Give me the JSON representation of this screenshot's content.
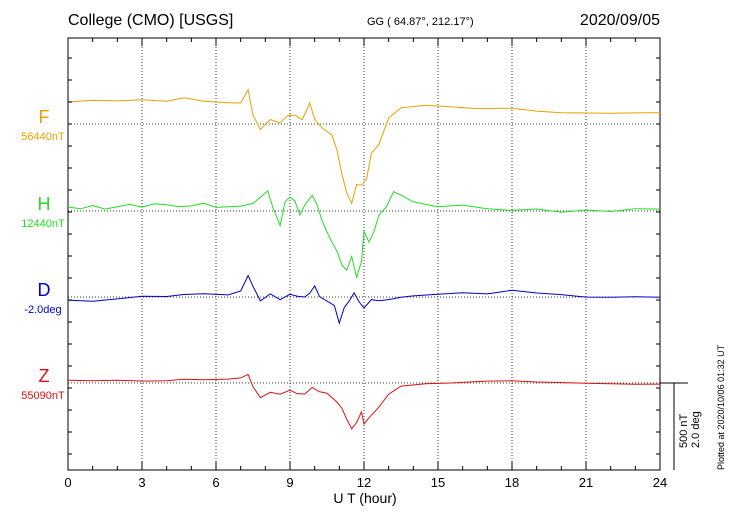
{
  "header": {
    "station": "College (CMO)  [USGS]",
    "coords": "GG ( 64.87°, 212.17°)",
    "date": "2020/09/05"
  },
  "footer": {
    "plotted": "Plotted at 2020/10/06 01:32 UT"
  },
  "scale": {
    "nt": "500 nT",
    "deg": "2.0 deg"
  },
  "chart_data": {
    "type": "line",
    "title": "College (CMO)  [USGS]",
    "xlabel": "U T (hour)",
    "ylabel": "",
    "xlim": [
      0,
      24
    ],
    "xticks": [
      0,
      3,
      6,
      9,
      12,
      15,
      18,
      21,
      24
    ],
    "xtick_labels": [
      "0",
      "3",
      "6",
      "9",
      "12",
      "15",
      "18",
      "21",
      "24"
    ],
    "grid": true,
    "series": [
      {
        "name": "F",
        "baseline_label": "56440nT",
        "color": "#e8a000",
        "points": [
          [
            0,
            -22
          ],
          [
            1,
            -23
          ],
          [
            2,
            -22
          ],
          [
            3,
            -23
          ],
          [
            4,
            -22
          ],
          [
            4.7,
            -25
          ],
          [
            5.5,
            -23
          ],
          [
            6.5,
            -22
          ],
          [
            7,
            -22
          ],
          [
            7.3,
            -35
          ],
          [
            7.5,
            -10
          ],
          [
            7.8,
            5
          ],
          [
            8.2,
            -5
          ],
          [
            8.6,
            0
          ],
          [
            8.9,
            -8
          ],
          [
            9.2,
            -10
          ],
          [
            9.5,
            -5
          ],
          [
            9.8,
            -20
          ],
          [
            10,
            -5
          ],
          [
            10.3,
            5
          ],
          [
            10.7,
            10
          ],
          [
            10.9,
            25
          ],
          [
            11.1,
            50
          ],
          [
            11.3,
            70
          ],
          [
            11.5,
            80
          ],
          [
            11.7,
            60
          ],
          [
            11.9,
            60
          ],
          [
            12.1,
            55
          ],
          [
            12.3,
            30
          ],
          [
            12.6,
            20
          ],
          [
            13,
            -5
          ],
          [
            13.5,
            -15
          ],
          [
            14.5,
            -18
          ],
          [
            15.5,
            -17
          ],
          [
            16.5,
            -16
          ],
          [
            18,
            -17
          ],
          [
            19,
            -14
          ],
          [
            20,
            -12
          ],
          [
            21,
            -11
          ],
          [
            22,
            -10
          ],
          [
            23,
            -10
          ],
          [
            24,
            -10
          ]
        ]
      },
      {
        "name": "H",
        "baseline_label": "12440nT",
        "color": "#22dd22",
        "points": [
          [
            0,
            -5
          ],
          [
            0.5,
            -3
          ],
          [
            1,
            -6
          ],
          [
            1.5,
            -2
          ],
          [
            2,
            -4
          ],
          [
            2.5,
            -6
          ],
          [
            3,
            -3
          ],
          [
            3.5,
            -6
          ],
          [
            4,
            -5
          ],
          [
            4.5,
            -3
          ],
          [
            5,
            -4
          ],
          [
            5.5,
            -7
          ],
          [
            6,
            -3
          ],
          [
            6.5,
            -4
          ],
          [
            7,
            -5
          ],
          [
            7.5,
            -8
          ],
          [
            7.8,
            -15
          ],
          [
            8.1,
            -20
          ],
          [
            8.3,
            -5
          ],
          [
            8.6,
            15
          ],
          [
            8.8,
            -10
          ],
          [
            9.0,
            -15
          ],
          [
            9.2,
            -10
          ],
          [
            9.4,
            5
          ],
          [
            9.6,
            -5
          ],
          [
            9.9,
            -15
          ],
          [
            10.1,
            -5
          ],
          [
            10.3,
            10
          ],
          [
            10.5,
            20
          ],
          [
            10.7,
            30
          ],
          [
            10.9,
            40
          ],
          [
            11.1,
            55
          ],
          [
            11.3,
            60
          ],
          [
            11.5,
            45
          ],
          [
            11.7,
            65
          ],
          [
            11.9,
            50
          ],
          [
            12.0,
            20
          ],
          [
            12.2,
            30
          ],
          [
            12.4,
            20
          ],
          [
            12.6,
            5
          ],
          [
            12.9,
            -5
          ],
          [
            13.2,
            -20
          ],
          [
            13.6,
            -15
          ],
          [
            14,
            -8
          ],
          [
            15,
            -3
          ],
          [
            16,
            -5
          ],
          [
            17,
            -2
          ],
          [
            18,
            -1
          ],
          [
            19,
            -3
          ],
          [
            20,
            0
          ],
          [
            21,
            -2
          ],
          [
            22,
            0
          ],
          [
            23,
            -2
          ],
          [
            24,
            -1
          ]
        ]
      },
      {
        "name": "D",
        "baseline_label": "-2.0deg",
        "color": "#0000cc",
        "points": [
          [
            0,
            2
          ],
          [
            1,
            3
          ],
          [
            2,
            1
          ],
          [
            3,
            -1
          ],
          [
            4,
            0
          ],
          [
            4.7,
            -3
          ],
          [
            5.5,
            -2
          ],
          [
            6.5,
            -1
          ],
          [
            7,
            -5
          ],
          [
            7.3,
            -22
          ],
          [
            7.5,
            -10
          ],
          [
            7.8,
            3
          ],
          [
            8.2,
            -2
          ],
          [
            8.6,
            2
          ],
          [
            9.0,
            -3
          ],
          [
            9.3,
            -2
          ],
          [
            9.6,
            0
          ],
          [
            9.8,
            -5
          ],
          [
            10.0,
            -12
          ],
          [
            10.2,
            0
          ],
          [
            10.5,
            3
          ],
          [
            10.8,
            8
          ],
          [
            11.0,
            25
          ],
          [
            11.2,
            10
          ],
          [
            11.4,
            5
          ],
          [
            11.6,
            -3
          ],
          [
            11.8,
            5
          ],
          [
            12.0,
            10
          ],
          [
            12.3,
            3
          ],
          [
            12.6,
            5
          ],
          [
            13,
            2
          ],
          [
            13.5,
            0
          ],
          [
            14,
            -1
          ],
          [
            15,
            -2
          ],
          [
            16,
            -3
          ],
          [
            17,
            -2
          ],
          [
            18,
            -6
          ],
          [
            19,
            -4
          ],
          [
            20,
            -3
          ],
          [
            21,
            -1
          ],
          [
            22,
            -1
          ],
          [
            23,
            -1
          ],
          [
            24,
            0
          ]
        ]
      },
      {
        "name": "Z",
        "baseline_label": "55090nT",
        "color": "#dd1111",
        "points": [
          [
            0,
            -3
          ],
          [
            1,
            -3
          ],
          [
            2,
            -4
          ],
          [
            3,
            -3
          ],
          [
            4,
            -3
          ],
          [
            4.7,
            -5
          ],
          [
            5.5,
            -3
          ],
          [
            6.5,
            -3
          ],
          [
            7,
            -4
          ],
          [
            7.3,
            -8
          ],
          [
            7.5,
            5
          ],
          [
            7.8,
            15
          ],
          [
            8.2,
            10
          ],
          [
            8.6,
            10
          ],
          [
            9,
            8
          ],
          [
            9.3,
            10
          ],
          [
            9.6,
            10
          ],
          [
            9.9,
            5
          ],
          [
            10.2,
            10
          ],
          [
            10.5,
            10
          ],
          [
            10.9,
            20
          ],
          [
            11.1,
            25
          ],
          [
            11.3,
            35
          ],
          [
            11.5,
            45
          ],
          [
            11.7,
            40
          ],
          [
            11.9,
            30
          ],
          [
            12.0,
            40
          ],
          [
            12.2,
            35
          ],
          [
            12.6,
            25
          ],
          [
            13,
            10
          ],
          [
            13.5,
            2
          ],
          [
            14.5,
            0
          ],
          [
            15.5,
            0
          ],
          [
            17,
            -1
          ],
          [
            18,
            -1
          ],
          [
            19,
            0
          ],
          [
            20,
            0
          ],
          [
            21,
            0
          ],
          [
            22,
            0
          ],
          [
            23,
            0
          ],
          [
            24,
            0
          ]
        ]
      }
    ]
  }
}
